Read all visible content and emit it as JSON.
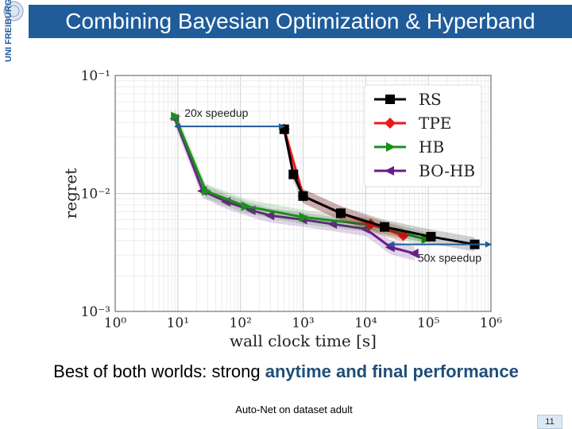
{
  "slide": {
    "title": "Combining Bayesian Optimization & Hyperband",
    "logo_text": "UNI FREIBURG",
    "caption_prefix": "Best of both worlds: strong ",
    "caption_highlight": "anytime and final performance",
    "footnote": "Auto-Net on dataset adult",
    "page_number": "11",
    "accent_color": "#1f5c99"
  },
  "chart_data": {
    "type": "line",
    "xscale": "log",
    "yscale": "log",
    "xlim": [
      1,
      1000000
    ],
    "ylim": [
      0.001,
      0.1
    ],
    "xlabel": "wall clock time [s]",
    "ylabel": "regret",
    "x_ticks": [
      1,
      10,
      100,
      1000,
      10000,
      100000,
      1000000
    ],
    "x_tick_labels": [
      "10⁰",
      "10¹",
      "10²",
      "10³",
      "10⁴",
      "10⁵",
      "10⁶"
    ],
    "y_ticks": [
      0.001,
      0.01,
      0.1
    ],
    "y_tick_labels": [
      "10⁻³",
      "10⁻²",
      "10⁻¹"
    ],
    "grid": true,
    "legend_position": "top-right",
    "series": [
      {
        "name": "RS",
        "color": "#000000",
        "marker": "square",
        "x": [
          500,
          700,
          1000,
          4000,
          20000,
          110000,
          550000
        ],
        "y": [
          0.035,
          0.0145,
          0.0095,
          0.0068,
          0.0052,
          0.0043,
          0.0037
        ]
      },
      {
        "name": "TPE",
        "color": "#e8191b",
        "marker": "diamond",
        "x": [
          500,
          1000,
          4000,
          12000,
          40000
        ],
        "y": [
          0.035,
          0.0095,
          0.0068,
          0.0055,
          0.0044
        ]
      },
      {
        "name": "HB",
        "color": "#1a8f1a",
        "marker": "triangle",
        "x": [
          9,
          28,
          120,
          1000,
          12000,
          90000
        ],
        "y": [
          0.045,
          0.0105,
          0.0078,
          0.0063,
          0.0054,
          0.0041
        ]
      },
      {
        "name": "BO-HB",
        "color": "#6a1b8a",
        "marker": "left-triangle",
        "x": [
          9,
          25,
          60,
          150,
          300,
          1000,
          3000,
          10000,
          25000,
          60000
        ],
        "y": [
          0.043,
          0.0105,
          0.0085,
          0.0072,
          0.0065,
          0.006,
          0.0055,
          0.005,
          0.0035,
          0.0031
        ]
      }
    ],
    "annotations": [
      {
        "text": "20x speedup",
        "from_x": 9,
        "to_x": 500,
        "y": 0.037
      },
      {
        "text": "50x speedup",
        "from_x": 23000,
        "to_x": 1000000,
        "y": 0.0037
      }
    ]
  }
}
